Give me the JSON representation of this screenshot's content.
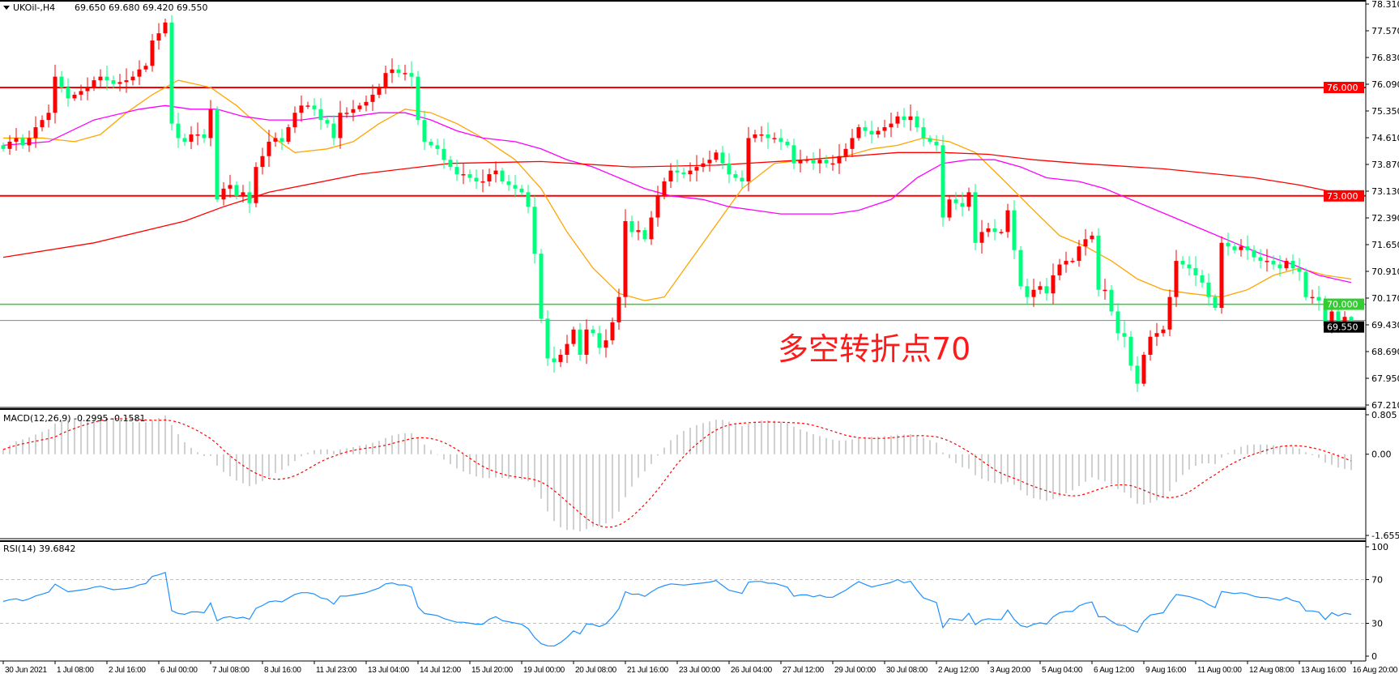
{
  "header": {
    "symbol_title": "UKOil-,H4",
    "ohlc_text": "69.650 69.680 69.420 69.550"
  },
  "annotation": "多空转折点70",
  "colors": {
    "up_candle": "#ff0000",
    "down_candle": "#00ff7f",
    "ma_fast": "#ffa500",
    "ma_mid": "#ff00ff",
    "ma_slow": "#ff0000",
    "level_line": "#ff0000",
    "pivot_line": "#33cc33",
    "bid_line": "#778899",
    "macd_hist": "#c0c0c0",
    "macd_signal": "#ff0000",
    "rsi": "#1e90ff"
  },
  "chart_data": [
    {
      "type": "candlestick",
      "title": "UKOil-,H4",
      "last_bar": {
        "open": 69.65,
        "high": 69.68,
        "low": 69.42,
        "close": 69.55
      },
      "ylim": [
        67.21,
        78.31
      ],
      "y_ticks": [
        "78.310",
        "77.570",
        "76.830",
        "76.090",
        "75.350",
        "74.610",
        "73.870",
        "73.130",
        "72.390",
        "71.650",
        "70.910",
        "70.170",
        "69.430",
        "68.690",
        "67.950",
        "67.210"
      ],
      "x_tick_labels": [
        "30 Jun 2021",
        "1 Jul 08:00",
        "2 Jul 16:00",
        "6 Jul 00:00",
        "7 Jul 08:00",
        "8 Jul 16:00",
        "11 Jul 23:00",
        "13 Jul 04:00",
        "14 Jul 12:00",
        "15 Jul 20:00",
        "19 Jul 00:00",
        "20 Jul 08:00",
        "21 Jul 16:00",
        "23 Jul 00:00",
        "26 Jul 04:00",
        "27 Jul 12:00",
        "29 Jul 00:00",
        "30 Jul 08:00",
        "2 Aug 12:00",
        "3 Aug 20:00",
        "5 Aug 04:00",
        "6 Aug 12:00",
        "9 Aug 16:00",
        "11 Aug 00:00",
        "12 Aug 08:00",
        "13 Aug 16:00",
        "16 Aug 20:00"
      ],
      "bars_per_x_tick": 8,
      "close": [
        74.3,
        74.5,
        74.6,
        74.4,
        74.6,
        74.9,
        75.1,
        75.3,
        76.3,
        76.0,
        75.7,
        75.8,
        75.9,
        76.0,
        76.2,
        76.3,
        76.2,
        76.1,
        76.15,
        76.2,
        76.3,
        76.5,
        76.6,
        77.3,
        77.5,
        77.8,
        75.0,
        74.6,
        74.5,
        74.7,
        74.7,
        74.6,
        75.4,
        72.9,
        73.2,
        73.3,
        73.0,
        73.1,
        72.8,
        73.8,
        74.1,
        74.5,
        74.6,
        74.5,
        74.9,
        75.3,
        75.5,
        75.5,
        75.4,
        75.1,
        75.0,
        74.6,
        75.3,
        75.3,
        75.4,
        75.5,
        75.6,
        75.8,
        76.0,
        76.4,
        76.5,
        76.4,
        76.4,
        76.3,
        75.1,
        74.5,
        74.4,
        74.3,
        74.0,
        73.8,
        73.6,
        73.6,
        73.5,
        73.4,
        73.4,
        73.6,
        73.7,
        73.4,
        73.3,
        73.2,
        73.1,
        72.7,
        71.4,
        69.6,
        68.5,
        68.4,
        68.6,
        68.9,
        69.3,
        68.6,
        69.3,
        69.2,
        68.8,
        69.0,
        69.5,
        70.2,
        72.3,
        72.0,
        72.05,
        71.8,
        72.4,
        73.0,
        73.4,
        73.7,
        73.65,
        73.6,
        73.7,
        73.8,
        73.9,
        74.0,
        74.2,
        73.9,
        73.6,
        73.5,
        73.4,
        74.6,
        74.7,
        74.7,
        74.6,
        74.6,
        74.5,
        74.4,
        73.9,
        74.0,
        74.0,
        73.9,
        74.0,
        73.9,
        73.9,
        74.1,
        74.3,
        74.6,
        74.9,
        74.8,
        74.7,
        74.8,
        74.9,
        75.0,
        75.2,
        75.1,
        75.2,
        74.9,
        74.6,
        74.5,
        74.4,
        72.4,
        72.9,
        72.8,
        72.7,
        73.1,
        71.7,
        72.0,
        72.1,
        72.0,
        72.0,
        72.6,
        71.5,
        70.5,
        70.2,
        70.4,
        70.5,
        70.3,
        70.8,
        71.1,
        71.2,
        71.2,
        71.6,
        71.8,
        71.9,
        70.4,
        70.4,
        69.8,
        69.2,
        69.1,
        68.3,
        67.8,
        68.6,
        69.1,
        69.2,
        69.3,
        70.2,
        71.2,
        71.1,
        71.0,
        70.8,
        70.6,
        70.2,
        69.9,
        71.7,
        71.6,
        71.5,
        71.6,
        71.5,
        71.3,
        71.2,
        71.2,
        71.1,
        71.0,
        71.2,
        71.0,
        70.9,
        70.2,
        70.2,
        70.1,
        69.4,
        69.8,
        69.5,
        69.65,
        69.55
      ],
      "moving_averages": [
        {
          "color_key": "ma_fast",
          "points": [
            [
              0,
              74.6
            ],
            [
              6,
              74.6
            ],
            [
              11,
              74.5
            ],
            [
              15,
              74.7
            ],
            [
              19,
              75.3
            ],
            [
              23,
              75.8
            ],
            [
              27,
              76.2
            ],
            [
              32,
              76.0
            ],
            [
              36,
              75.5
            ],
            [
              41,
              74.7
            ],
            [
              45,
              74.2
            ],
            [
              50,
              74.3
            ],
            [
              54,
              74.5
            ],
            [
              58,
              75.0
            ],
            [
              62,
              75.4
            ],
            [
              66,
              75.3
            ],
            [
              70,
              75.0
            ],
            [
              74,
              74.6
            ],
            [
              79,
              74.0
            ],
            [
              83,
              73.2
            ],
            [
              87,
              72.0
            ],
            [
              91,
              71.0
            ],
            [
              95,
              70.3
            ],
            [
              99,
              70.1
            ],
            [
              102,
              70.2
            ],
            [
              106,
              71.2
            ],
            [
              110,
              72.2
            ],
            [
              114,
              73.2
            ],
            [
              119,
              73.9
            ],
            [
              124,
              74.0
            ],
            [
              130,
              74.1
            ],
            [
              134,
              74.3
            ],
            [
              138,
              74.4
            ],
            [
              142,
              74.6
            ],
            [
              146,
              74.5
            ],
            [
              150,
              74.2
            ],
            [
              154,
              73.5
            ],
            [
              159,
              72.6
            ],
            [
              163,
              71.9
            ],
            [
              167,
              71.6
            ],
            [
              171,
              71.2
            ],
            [
              175,
              70.7
            ],
            [
              179,
              70.4
            ],
            [
              183,
              70.3
            ],
            [
              188,
              70.2
            ],
            [
              192,
              70.4
            ],
            [
              196,
              70.8
            ],
            [
              200,
              71.0
            ],
            [
              204,
              70.8
            ],
            [
              208,
              70.7
            ]
          ]
        },
        {
          "color_key": "ma_mid",
          "points": [
            [
              0,
              74.4
            ],
            [
              7,
              74.5
            ],
            [
              14,
              75.1
            ],
            [
              21,
              75.4
            ],
            [
              25,
              75.5
            ],
            [
              29,
              75.4
            ],
            [
              33,
              75.4
            ],
            [
              37,
              75.2
            ],
            [
              41,
              75.1
            ],
            [
              46,
              75.1
            ],
            [
              50,
              75.2
            ],
            [
              54,
              75.2
            ],
            [
              58,
              75.3
            ],
            [
              62,
              75.3
            ],
            [
              66,
              75.1
            ],
            [
              70,
              74.8
            ],
            [
              74,
              74.6
            ],
            [
              79,
              74.5
            ],
            [
              83,
              74.3
            ],
            [
              87,
              74.0
            ],
            [
              91,
              73.8
            ],
            [
              95,
              73.5
            ],
            [
              99,
              73.2
            ],
            [
              103,
              73.0
            ],
            [
              108,
              72.9
            ],
            [
              112,
              72.7
            ],
            [
              116,
              72.6
            ],
            [
              120,
              72.5
            ],
            [
              124,
              72.5
            ],
            [
              128,
              72.5
            ],
            [
              132,
              72.6
            ],
            [
              137,
              72.9
            ],
            [
              141,
              73.5
            ],
            [
              145,
              73.9
            ],
            [
              149,
              74.0
            ],
            [
              153,
              74.0
            ],
            [
              157,
              73.8
            ],
            [
              161,
              73.5
            ],
            [
              166,
              73.4
            ],
            [
              170,
              73.2
            ],
            [
              174,
              72.9
            ],
            [
              178,
              72.6
            ],
            [
              182,
              72.3
            ],
            [
              186,
              72.0
            ],
            [
              190,
              71.7
            ],
            [
              194,
              71.4
            ],
            [
              199,
              71.1
            ],
            [
              203,
              70.8
            ],
            [
              208,
              70.6
            ]
          ]
        },
        {
          "color_key": "ma_slow",
          "points": [
            [
              0,
              71.3
            ],
            [
              14,
              71.7
            ],
            [
              28,
              72.3
            ],
            [
              34,
              72.7
            ],
            [
              41,
              73.1
            ],
            [
              55,
              73.6
            ],
            [
              69,
              73.9
            ],
            [
              83,
              73.95
            ],
            [
              97,
              73.8
            ],
            [
              110,
              73.85
            ],
            [
              124,
              74.0
            ],
            [
              138,
              74.2
            ],
            [
              145,
              74.2
            ],
            [
              152,
              74.15
            ],
            [
              159,
              74.0
            ],
            [
              166,
              73.9
            ],
            [
              179,
              73.75
            ],
            [
              193,
              73.5
            ],
            [
              200,
              73.3
            ],
            [
              208,
              73.0
            ]
          ]
        }
      ],
      "horizontal_levels": [
        {
          "value": 76.0,
          "label": "76.000",
          "color_key": "level_line"
        },
        {
          "value": 73.0,
          "label": "73.000",
          "color_key": "level_line"
        },
        {
          "value": 70.0,
          "label": "70.000",
          "color_key": "pivot_line"
        }
      ],
      "bid_line": {
        "value": 69.55,
        "label": "69.550"
      }
    },
    {
      "type": "macd",
      "title": "MACD(12,26,9) -0.2995 -0.1581",
      "params": [
        12,
        26,
        9
      ],
      "main": -0.2995,
      "signal": -0.1581,
      "ylim": [
        -1.6556,
        0.805
      ],
      "y_ticks": [
        "0.805",
        "0.00",
        "-1.6556"
      ]
    },
    {
      "type": "rsi",
      "title": "RSI(14) 39.6842",
      "period": 14,
      "value": 39.6842,
      "ylim": [
        0,
        100
      ],
      "levels": [
        30,
        70
      ],
      "y_ticks": [
        "100",
        "70",
        "30",
        "0"
      ]
    }
  ]
}
